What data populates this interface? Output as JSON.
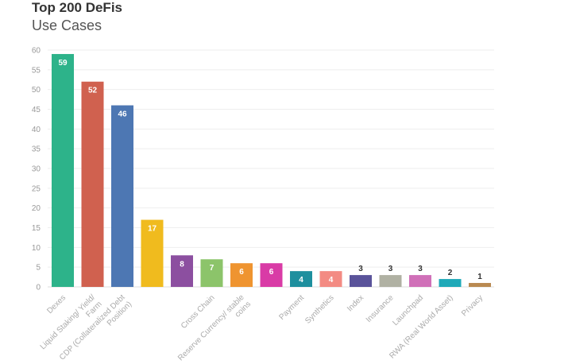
{
  "chart_data": {
    "type": "bar",
    "title": "Top 200 DeFis",
    "subtitle": "Use Cases",
    "xlabel": "",
    "ylabel": "",
    "ylim": [
      0,
      60
    ],
    "yticks": [
      0,
      5,
      10,
      15,
      20,
      25,
      30,
      35,
      40,
      45,
      50,
      55,
      60
    ],
    "grid": true,
    "categories": [
      "Dexes",
      "Liquid Staking/ Yield/ Farm",
      "CDP (Collateralized Debt Position)",
      "Cross Chain",
      "Reserve Currency/ stable coins",
      "Payment",
      "Synthetics",
      "Index",
      "Insurance",
      "Launchpad",
      "RWA (Real World Asset)",
      "Privacy"
    ],
    "bars": [
      {
        "label": "Dexes",
        "value": 59,
        "color": "#2db38a"
      },
      {
        "label": "Liquid Staking/ Yield/ Farm",
        "value": 52,
        "color": "#d0614f"
      },
      {
        "label": "CDP (Collateralized Debt Position)",
        "value": 46,
        "color": "#4d77b3"
      },
      {
        "label": "",
        "value": 17,
        "color": "#f0bb1e"
      },
      {
        "label": "",
        "value": 8,
        "color": "#8c4fa0"
      },
      {
        "label": "Cross Chain",
        "value": 7,
        "color": "#8cc46a"
      },
      {
        "label": "Reserve Currency/ stable coins",
        "value": 6,
        "color": "#ef9430"
      },
      {
        "label": "",
        "value": 6,
        "color": "#d93ba6"
      },
      {
        "label": "Payment",
        "value": 4,
        "color": "#1e8f9e"
      },
      {
        "label": "Synthetics",
        "value": 4,
        "color": "#f38b83"
      },
      {
        "label": "Index",
        "value": 3,
        "color": "#5a539a"
      },
      {
        "label": "Insurance",
        "value": 3,
        "color": "#b0b1a3"
      },
      {
        "label": "Launchpad",
        "value": 3,
        "color": "#d070b8"
      },
      {
        "label": "RWA (Real World Asset)",
        "value": 2,
        "color": "#1fa9b8"
      },
      {
        "label": "Privacy",
        "value": 1,
        "color": "#b98950"
      }
    ]
  }
}
